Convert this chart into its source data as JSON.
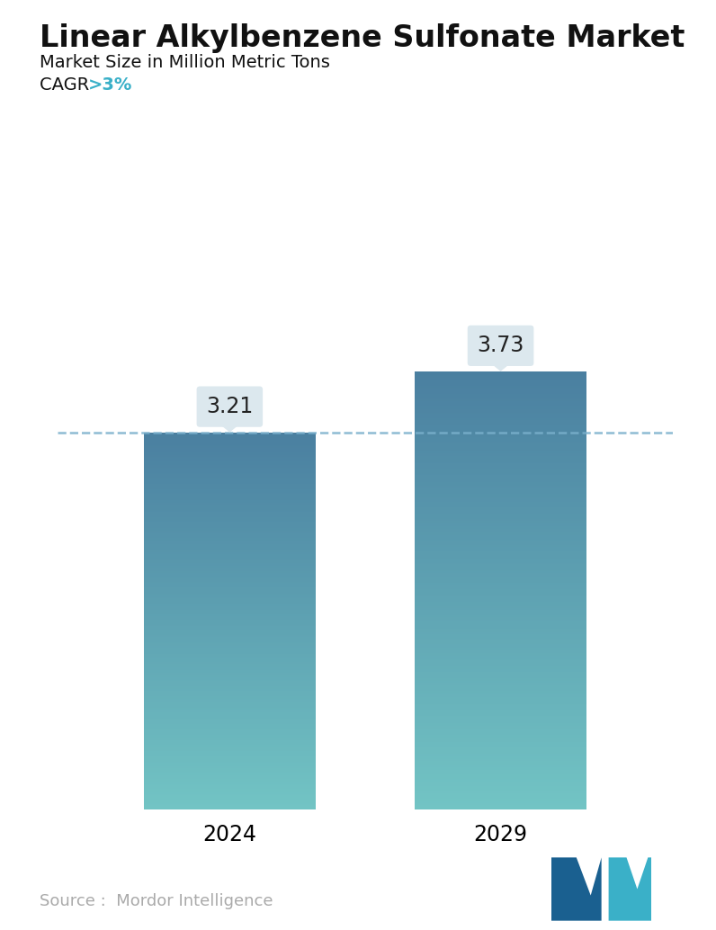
{
  "title": "Linear Alkylbenzene Sulfonate Market",
  "subtitle": "Market Size in Million Metric Tons",
  "cagr_label": "CAGR ",
  "cagr_value": ">3%",
  "cagr_color": "#3ab0c8",
  "categories": [
    "2024",
    "2029"
  ],
  "values": [
    3.21,
    3.73
  ],
  "bar_color_top": "#4a7fa0",
  "bar_color_bottom": "#72c4c4",
  "dashed_line_color": "#7ab0cc",
  "dashed_line_value": 3.21,
  "label_box_color": "#dce8ee",
  "source_text": "Source :  Mordor Intelligence",
  "source_color": "#aaaaaa",
  "background_color": "#ffffff",
  "title_fontsize": 24,
  "subtitle_fontsize": 14,
  "cagr_fontsize": 14,
  "bar_label_fontsize": 17,
  "xlabel_fontsize": 17,
  "source_fontsize": 13,
  "ylim": [
    0,
    4.6
  ],
  "bar_width": 0.28
}
